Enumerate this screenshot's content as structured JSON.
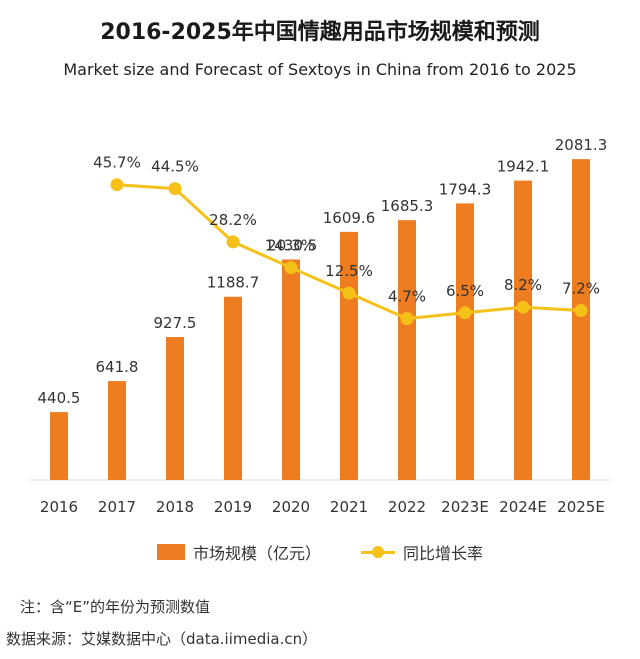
{
  "title": "2016-2025年中国情趣用品市场规模和预测",
  "subtitle": "Market size and Forecast of Sextoys in China from 2016 to 2025",
  "note": "注：含“E”的年份为预测数值",
  "source": "数据来源：艾媒数据中心（data.iimedia.cn）",
  "colors": {
    "bar": "#ee7d22",
    "line": "#f5c118",
    "axis": "#d9d9d9"
  },
  "chart_data": {
    "type": "bar",
    "categories": [
      "2016",
      "2017",
      "2018",
      "2019",
      "2020",
      "2021",
      "2022",
      "2023E",
      "2024E",
      "2025E"
    ],
    "series": [
      {
        "name": "市场规模（亿元）",
        "type": "bar",
        "values": [
          440.5,
          641.8,
          927.5,
          1188.7,
          1430.5,
          1609.6,
          1685.3,
          1794.3,
          1942.1,
          2081.3
        ],
        "labels": [
          "440.5",
          "641.8",
          "927.5",
          "1188.7",
          "1430.5",
          "1609.6",
          "1685.3",
          "1794.3",
          "1942.1",
          "2081.3"
        ]
      },
      {
        "name": "同比增长率",
        "type": "line",
        "values": [
          null,
          45.7,
          44.5,
          28.2,
          20.3,
          12.5,
          4.7,
          6.5,
          8.2,
          7.2
        ],
        "labels": [
          "",
          "45.7%",
          "44.5%",
          "28.2%",
          "20.3%",
          "12.5%",
          "4.7%",
          "6.5%",
          "8.2%",
          "7.2%"
        ]
      }
    ],
    "bar_ylim": [
      0,
      2400
    ],
    "line_ylim": [
      -60,
      90
    ],
    "legend_position": "bottom",
    "grid": false
  }
}
